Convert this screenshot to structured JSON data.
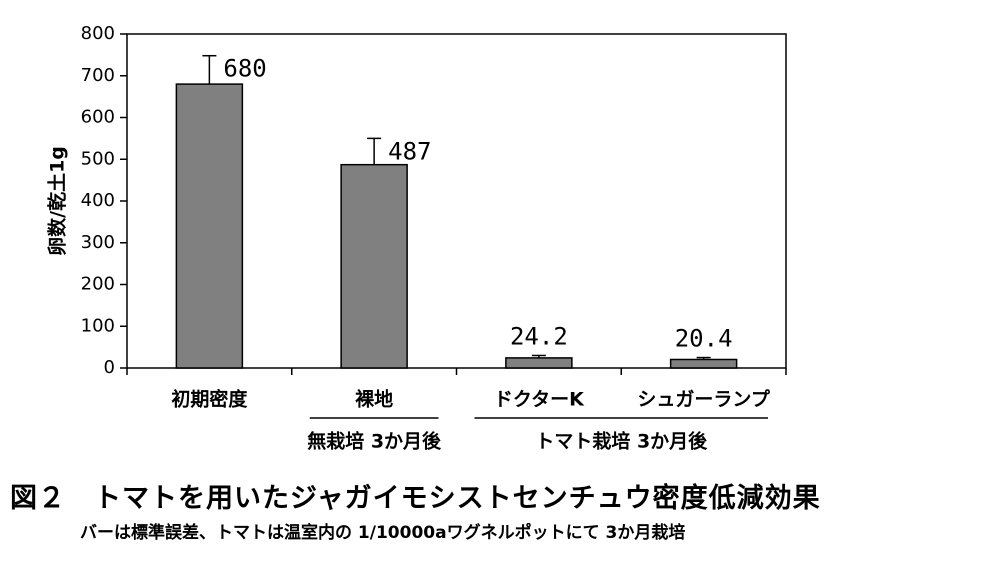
{
  "chart_data": {
    "type": "bar",
    "ylabel": "卵数/乾土1g",
    "ylim": [
      0,
      800
    ],
    "yticks": [
      "0",
      "100",
      "200",
      "300",
      "400",
      "500",
      "600",
      "700",
      "800"
    ],
    "categories": [
      "初期密度",
      "裸地",
      "ドクターK",
      "シュガーランプ"
    ],
    "values": [
      680,
      487,
      24.2,
      20.4
    ],
    "error_upper": [
      748,
      550,
      30,
      25
    ],
    "data_labels": [
      "680",
      "487",
      "24.2",
      "20.4"
    ],
    "groups": [
      {
        "label": "無栽培 3か月後",
        "first": 1,
        "last": 1
      },
      {
        "label": "トマト栽培 3か月後",
        "first": 2,
        "last": 3
      }
    ],
    "bar_color": "#808080",
    "grid": false
  },
  "caption": {
    "title": "図２　トマトを用いたジャガイモシストセンチュウ密度低減効果",
    "note": "バーは標準誤差、トマトは温室内の 1/10000aワグネルポットにて 3か月栽培"
  }
}
